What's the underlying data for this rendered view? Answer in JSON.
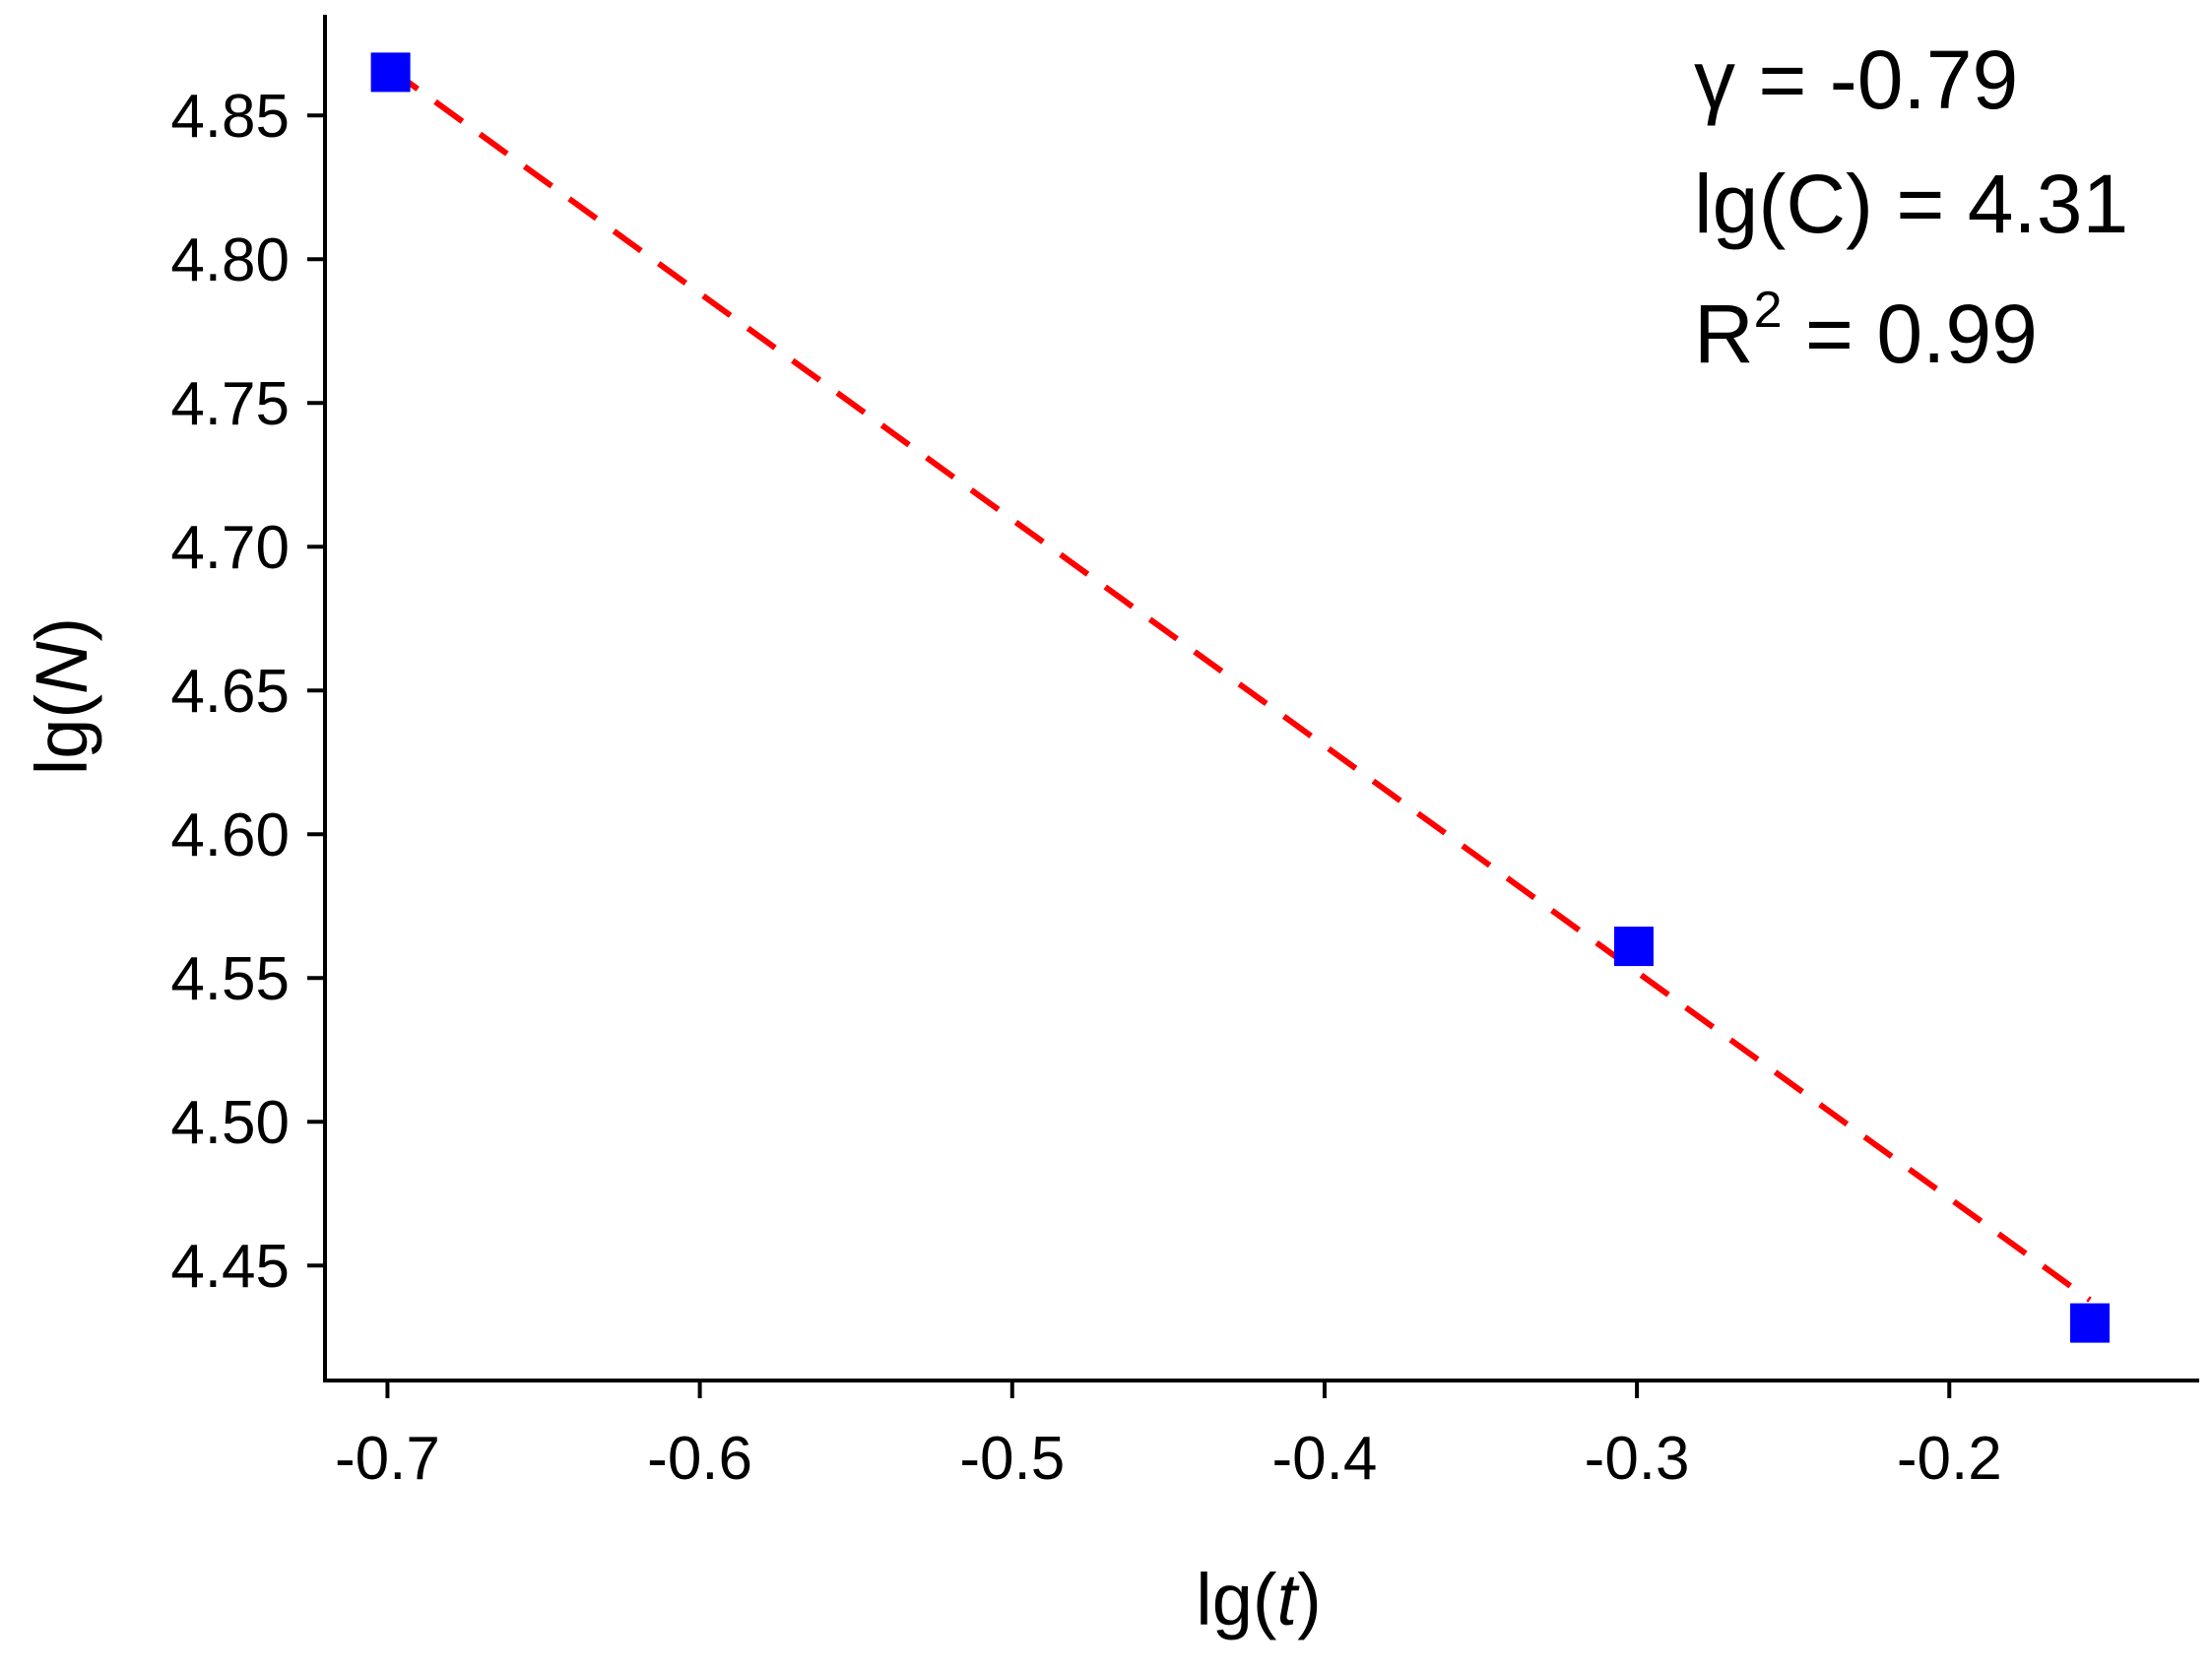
{
  "chart_data": {
    "type": "scatter",
    "xlabel_prefix": "lg(",
    "xlabel_var": "t",
    "xlabel_suffix": ")",
    "ylabel_prefix": "lg(",
    "ylabel_var": "N",
    "ylabel_suffix": ")",
    "xlim": [
      -0.72,
      -0.12
    ],
    "ylim": [
      4.41,
      4.885
    ],
    "x_ticks": [
      -0.7,
      -0.6,
      -0.5,
      -0.4,
      -0.3,
      -0.2
    ],
    "x_tick_labels": [
      "-0.7",
      "-0.6",
      "-0.5",
      "-0.4",
      "-0.3",
      "-0.2"
    ],
    "y_ticks": [
      4.45,
      4.5,
      4.55,
      4.6,
      4.65,
      4.7,
      4.75,
      4.8,
      4.85
    ],
    "y_tick_labels": [
      "4.45",
      "4.50",
      "4.55",
      "4.60",
      "4.65",
      "4.70",
      "4.75",
      "4.80",
      "4.85"
    ],
    "grid": false,
    "series": [
      {
        "kind": "scatter",
        "marker": "square",
        "color": "#0000ff",
        "x": [
          -0.699,
          -0.301,
          -0.155
        ],
        "y": [
          4.865,
          4.561,
          4.43
        ]
      },
      {
        "kind": "line",
        "style": "dashed",
        "color": "#ff0000",
        "x": [
          -0.699,
          -0.155
        ],
        "y": [
          4.866,
          4.438
        ]
      }
    ],
    "annotations": {
      "gamma": "γ = -0.79",
      "lgc": "lg(C) = 4.31",
      "r2_prefix": "R",
      "r2_sup": "2",
      "r2_suffix": " = 0.99"
    }
  }
}
